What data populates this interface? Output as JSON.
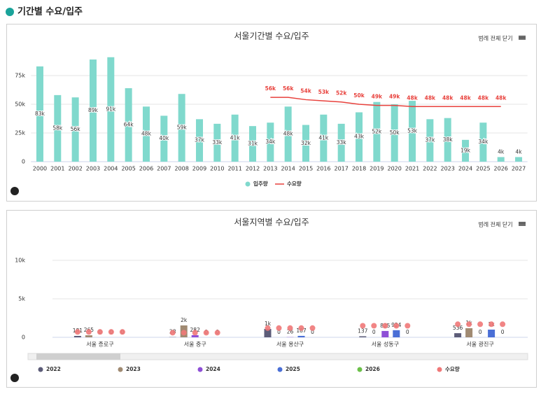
{
  "header": {
    "title": "기간별 수요/입주"
  },
  "chart_data": [
    {
      "type": "bar",
      "title": "서울기간별 수요/입주",
      "button": "범례 전체 닫기",
      "categories": [
        "2000",
        "2001",
        "2002",
        "2003",
        "2004",
        "2005",
        "2006",
        "2007",
        "2008",
        "2009",
        "2010",
        "2011",
        "2012",
        "2013",
        "2014",
        "2015",
        "2016",
        "2017",
        "2018",
        "2019",
        "2020",
        "2021",
        "2022",
        "2023",
        "2024",
        "2025",
        "2026",
        "2027"
      ],
      "series": [
        {
          "name": "입주량",
          "type": "bar",
          "color": "#80d9cd",
          "values": [
            83000,
            58000,
            56000,
            89000,
            91000,
            64000,
            48000,
            40000,
            59000,
            37000,
            33000,
            41000,
            31000,
            34000,
            48000,
            32000,
            41000,
            33000,
            43000,
            52000,
            50000,
            53000,
            37000,
            38000,
            19000,
            34000,
            4000,
            4000
          ],
          "value_labels": [
            "83k",
            "58k",
            "56k",
            "89k",
            "91k",
            "64k",
            "48k",
            "40k",
            "59k",
            "37k",
            "33k",
            "41k",
            "31k",
            "34k",
            "48k",
            "32k",
            "41k",
            "33k",
            "43k",
            "52k",
            "50k",
            "53k",
            "37k",
            "38k",
            "19k",
            "34k",
            "4k",
            "4k"
          ]
        },
        {
          "name": "수요량",
          "type": "line",
          "color": "#e8413c",
          "values": [
            null,
            null,
            null,
            null,
            null,
            null,
            null,
            null,
            null,
            null,
            null,
            null,
            null,
            56000,
            56000,
            54000,
            53000,
            52000,
            50000,
            49000,
            49000,
            48000,
            48000,
            48000,
            48000,
            48000,
            48000,
            null
          ],
          "value_labels": [
            null,
            null,
            null,
            null,
            null,
            null,
            null,
            null,
            null,
            null,
            null,
            null,
            null,
            "56k",
            "56k",
            "54k",
            "53k",
            "52k",
            "50k",
            "49k",
            "49k",
            "48k",
            "48k",
            "48k",
            "48k",
            "48k",
            "48k",
            null
          ]
        }
      ],
      "ylim": [
        0,
        100000
      ],
      "yticks": [
        0,
        {
          "value": 25000,
          "label": "25k"
        },
        {
          "value": 50000,
          "label": "50k"
        },
        {
          "value": 75000,
          "label": "75k"
        }
      ],
      "grid": true
    },
    {
      "type": "bar",
      "title": "서울지역별 수요/입주",
      "button": "범례 전체 닫기",
      "categories": [
        "서울 종로구",
        "서울 중구",
        "서울 용산구",
        "서울 성동구",
        "서울 광진구"
      ],
      "series": [
        {
          "name": "2022",
          "type": "bar",
          "color": "#5c5c78",
          "values": [
            181,
            28,
            1090,
            137,
            536
          ],
          "value_labels": [
            "181",
            "28",
            "1k",
            "137",
            "536"
          ]
        },
        {
          "name": "2023",
          "type": "bar",
          "color": "#a08a72",
          "values": [
            265,
            1545,
            0,
            0,
            1180
          ],
          "value_labels": [
            "265",
            "2k",
            "0",
            "0",
            "1k"
          ]
        },
        {
          "name": "2024",
          "type": "bar",
          "color": "#8e4fd6",
          "values": [
            0,
            282,
            26,
            825,
            0
          ],
          "value_labels": [
            "0",
            "282",
            "26",
            "825",
            "0"
          ]
        },
        {
          "name": "2025",
          "type": "bar",
          "color": "#4a6fd6",
          "values": [
            0,
            0,
            187,
            924,
            1000
          ],
          "value_labels": [
            "0",
            "0",
            "187",
            "924",
            "1k"
          ]
        },
        {
          "name": "2026",
          "type": "bar",
          "color": "#6cc04a",
          "values": [
            0,
            0,
            0,
            0,
            0
          ],
          "value_labels": [
            "0",
            "0",
            "0",
            "0",
            "0"
          ]
        },
        {
          "name": "수요량",
          "type": "scatter",
          "color": "#f07878",
          "values": [
            [
              700,
              700,
              700,
              700,
              700
            ],
            [
              600,
              600,
              600,
              600,
              600
            ],
            [
              1200,
              1200,
              1200,
              1200,
              1200
            ],
            [
              1500,
              1500,
              1500,
              1500,
              1500
            ],
            [
              1700,
              1700,
              1700,
              1700,
              1700
            ]
          ]
        }
      ],
      "ylim": [
        0,
        10000
      ],
      "yticks": [
        0,
        {
          "value": 5000,
          "label": "5k"
        },
        {
          "value": 10000,
          "label": "10k"
        }
      ],
      "grid": true
    }
  ]
}
